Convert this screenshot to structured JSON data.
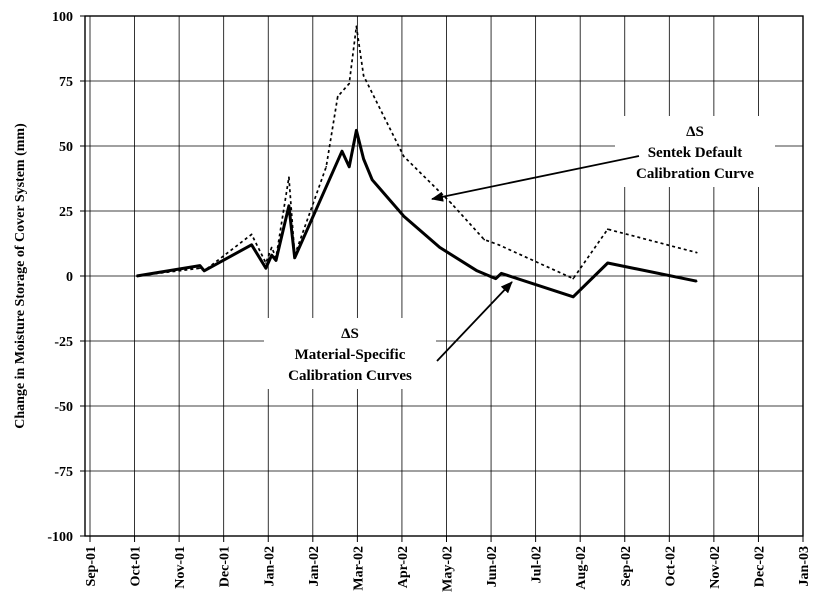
{
  "chart_data": {
    "type": "line",
    "ylabel": "Change in Moisture Storage of Cover System (mm)",
    "xlabel": "",
    "ylim": [
      -100,
      100
    ],
    "yticks": [
      100,
      75,
      50,
      25,
      0,
      -25,
      -50,
      -75,
      -100
    ],
    "grid": true,
    "x_tick_labels": [
      "Sep-01",
      "Oct-01",
      "Nov-01",
      "Dec-01",
      "Jan-02",
      "Jan-02",
      "Mar-02",
      "Apr-02",
      "May-02",
      "Jun-02",
      "Jul-02",
      "Aug-02",
      "Sep-02",
      "Oct-02",
      "Nov-02",
      "Dec-02",
      "Jan-03"
    ],
    "series": [
      {
        "name": "Sentek Default Calibration Curve",
        "style": "dotted",
        "points": [
          {
            "x": "2001-10-01",
            "y": 0
          },
          {
            "x": "2001-11-14",
            "y": 3
          },
          {
            "x": "2001-11-17",
            "y": 2
          },
          {
            "x": "2001-12-20",
            "y": 16
          },
          {
            "x": "2001-12-30",
            "y": 5
          },
          {
            "x": "2002-01-03",
            "y": 11
          },
          {
            "x": "2002-01-06",
            "y": 7
          },
          {
            "x": "2002-01-15",
            "y": 38
          },
          {
            "x": "2002-01-19",
            "y": 8
          },
          {
            "x": "2002-02-10",
            "y": 42
          },
          {
            "x": "2002-02-18",
            "y": 69
          },
          {
            "x": "2002-02-26",
            "y": 74
          },
          {
            "x": "2002-03-03",
            "y": 96
          },
          {
            "x": "2002-03-08",
            "y": 77
          },
          {
            "x": "2002-04-05",
            "y": 46
          },
          {
            "x": "2002-05-08",
            "y": 28
          },
          {
            "x": "2002-05-31",
            "y": 14
          },
          {
            "x": "2002-06-10",
            "y": 12
          },
          {
            "x": "2002-08-01",
            "y": -1
          },
          {
            "x": "2002-08-25",
            "y": 18
          },
          {
            "x": "2002-10-26",
            "y": 9
          }
        ]
      },
      {
        "name": "Material-Specific Calibration Curves",
        "style": "solid",
        "points": [
          {
            "x": "2001-10-01",
            "y": 0
          },
          {
            "x": "2001-11-14",
            "y": 4
          },
          {
            "x": "2001-11-17",
            "y": 2
          },
          {
            "x": "2001-12-20",
            "y": 12
          },
          {
            "x": "2001-12-30",
            "y": 3
          },
          {
            "x": "2002-01-03",
            "y": 8
          },
          {
            "x": "2002-01-06",
            "y": 6
          },
          {
            "x": "2002-01-15",
            "y": 27
          },
          {
            "x": "2002-01-19",
            "y": 7
          },
          {
            "x": "2002-02-21",
            "y": 48
          },
          {
            "x": "2002-02-26",
            "y": 42
          },
          {
            "x": "2002-03-03",
            "y": 56
          },
          {
            "x": "2002-03-08",
            "y": 45
          },
          {
            "x": "2002-03-14",
            "y": 37
          },
          {
            "x": "2002-04-05",
            "y": 23
          },
          {
            "x": "2002-04-30",
            "y": 11
          },
          {
            "x": "2002-05-26",
            "y": 2
          },
          {
            "x": "2002-06-08",
            "y": -1
          },
          {
            "x": "2002-06-12",
            "y": 1
          },
          {
            "x": "2002-08-01",
            "y": -8
          },
          {
            "x": "2002-08-25",
            "y": 5
          },
          {
            "x": "2002-10-26",
            "y": -2
          }
        ]
      }
    ],
    "annotations": [
      {
        "lines": [
          "ΔS",
          "Sentek Default",
          "Calibration Curve"
        ],
        "points_to_series": "Sentek Default Calibration Curve"
      },
      {
        "lines": [
          "ΔS",
          "Material-Specific",
          "Calibration Curves"
        ],
        "points_to_series": "Material-Specific Calibration Curves"
      }
    ]
  }
}
